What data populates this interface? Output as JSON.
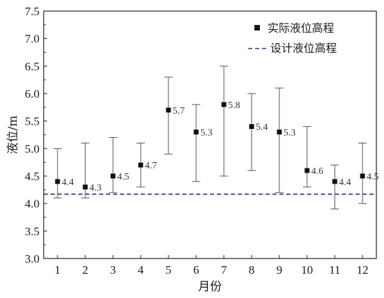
{
  "chart_data": {
    "type": "scatter",
    "xlabel": "月份",
    "ylabel": "液位/m",
    "xlim": [
      0.5,
      12.5
    ],
    "ylim": [
      3.0,
      7.5
    ],
    "x_ticks": [
      "1",
      "2",
      "3",
      "4",
      "5",
      "6",
      "7",
      "8",
      "9",
      "10",
      "11",
      "12"
    ],
    "y_ticks": [
      "3.0",
      "3.5",
      "4.0",
      "4.5",
      "5.0",
      "5.5",
      "6.0",
      "6.5",
      "7.0",
      "7.5"
    ],
    "grid": false,
    "legend_position": "top-right",
    "series": [
      {
        "name": "实际液位高程",
        "marker": "square",
        "color": "#111111",
        "x": [
          1,
          2,
          3,
          4,
          5,
          6,
          7,
          8,
          9,
          10,
          11,
          12
        ],
        "y": [
          4.4,
          4.3,
          4.5,
          4.7,
          5.7,
          5.3,
          5.8,
          5.4,
          5.3,
          4.6,
          4.4,
          4.5
        ],
        "labels": [
          "4.4",
          "4.3",
          "4.5",
          "4.7",
          "5.7",
          "5.3",
          "5.8",
          "5.4",
          "5.3",
          "4.6",
          "4.4",
          "4.5"
        ],
        "error_high": [
          5.0,
          5.1,
          5.2,
          5.1,
          6.3,
          5.8,
          6.5,
          6.0,
          6.1,
          5.4,
          4.7,
          5.1
        ],
        "error_low": [
          4.1,
          4.1,
          4.2,
          4.3,
          4.9,
          4.4,
          4.5,
          4.6,
          4.2,
          4.3,
          3.9,
          4.0
        ]
      },
      {
        "name": "设计液位高程",
        "style": "dashed",
        "color": "#1f3f8f",
        "y": 4.17
      }
    ]
  }
}
